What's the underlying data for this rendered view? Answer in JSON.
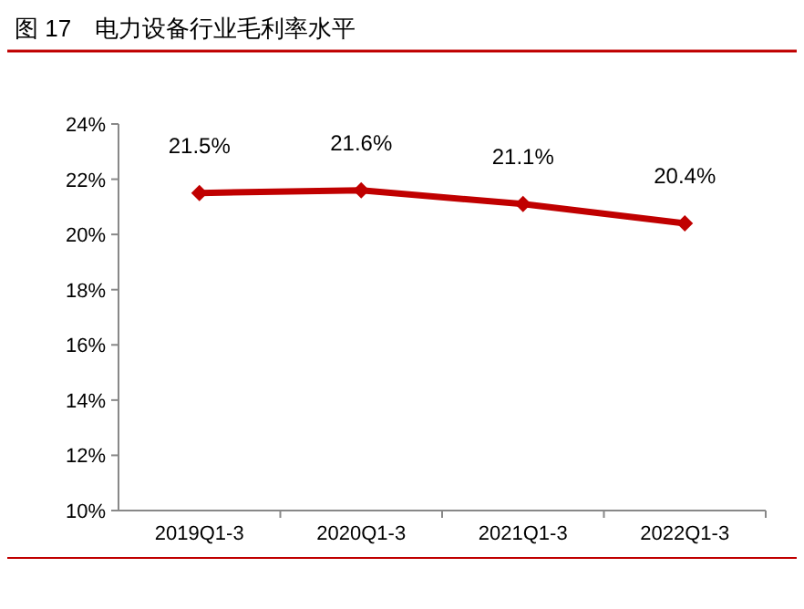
{
  "chart_data": {
    "type": "line",
    "title": "图 17　电力设备行业毛利率水平",
    "categories": [
      "2019Q1-3",
      "2020Q1-3",
      "2021Q1-3",
      "2022Q1-3"
    ],
    "series": [
      {
        "color": "#c00000",
        "values": [
          21.5,
          21.6,
          21.1,
          20.4
        ],
        "value_labels": [
          "21.5%",
          "21.6%",
          "21.1%",
          "20.4%"
        ]
      }
    ],
    "ylim": [
      10,
      24
    ],
    "yticks": [
      {
        "value": 10,
        "label": "10%"
      },
      {
        "value": 12,
        "label": "12%"
      },
      {
        "value": 14,
        "label": "14%"
      },
      {
        "value": 16,
        "label": "16%"
      },
      {
        "value": 18,
        "label": "18%"
      },
      {
        "value": 20,
        "label": "20%"
      },
      {
        "value": 22,
        "label": "22%"
      },
      {
        "value": 24,
        "label": "24%"
      }
    ],
    "marker": "diamond",
    "line_style": "solid",
    "grid": false
  }
}
